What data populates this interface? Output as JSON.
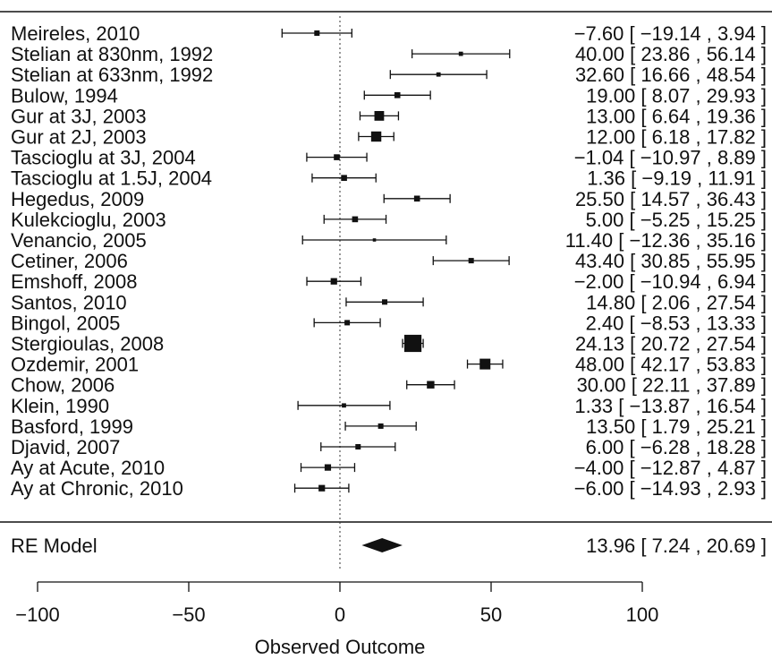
{
  "chart_data": {
    "type": "scatter",
    "subtype": "forest-plot",
    "xlabel": "Observed Outcome",
    "xlim": [
      -100,
      100
    ],
    "xticks": [
      -100,
      -50,
      0,
      50,
      100
    ],
    "xtick_labels": [
      "−100",
      "−50",
      "0",
      "50",
      "100"
    ],
    "reference_line": 0,
    "studies": [
      {
        "label": "Meireles, 2010",
        "est": -7.6,
        "lo": -19.14,
        "hi": 3.94,
        "ci_text": "−7.60 [ −19.14 , 3.94 ]",
        "weight": 1.0
      },
      {
        "label": "Stelian at 830nm, 1992",
        "est": 40.0,
        "lo": 23.86,
        "hi": 56.14,
        "ci_text": "40.00 [ 23.86 , 56.14 ]",
        "weight": 0.8
      },
      {
        "label": "Stelian at 633nm, 1992",
        "est": 32.6,
        "lo": 16.66,
        "hi": 48.54,
        "ci_text": "32.60 [ 16.66 , 48.54 ]",
        "weight": 0.8
      },
      {
        "label": "Bulow, 1994",
        "est": 19.0,
        "lo": 8.07,
        "hi": 29.93,
        "ci_text": "19.00 [ 8.07 , 29.93 ]",
        "weight": 1.1
      },
      {
        "label": "Gur at 3J, 2003",
        "est": 13.0,
        "lo": 6.64,
        "hi": 19.36,
        "ci_text": "13.00 [ 6.64 , 19.36 ]",
        "weight": 1.8
      },
      {
        "label": "Gur at 2J, 2003",
        "est": 12.0,
        "lo": 6.18,
        "hi": 17.82,
        "ci_text": "12.00 [ 6.18 , 17.82 ]",
        "weight": 1.9
      },
      {
        "label": "Tascioglu at 3J, 2004",
        "est": -1.04,
        "lo": -10.97,
        "hi": 8.89,
        "ci_text": "−1.04 [ −10.97 , 8.89 ]",
        "weight": 1.1
      },
      {
        "label": "Tascioglu at 1.5J, 2004",
        "est": 1.36,
        "lo": -9.19,
        "hi": 11.91,
        "ci_text": "1.36 [ −9.19 , 11.91 ]",
        "weight": 1.1
      },
      {
        "label": "Hegedus, 2009",
        "est": 25.5,
        "lo": 14.57,
        "hi": 36.43,
        "ci_text": "25.50 [ 14.57 , 36.43 ]",
        "weight": 1.1
      },
      {
        "label": "Kulekcioglu, 2003",
        "est": 5.0,
        "lo": -5.25,
        "hi": 15.25,
        "ci_text": "5.00 [ −5.25 , 15.25 ]",
        "weight": 1.1
      },
      {
        "label": "Venancio, 2005",
        "est": 11.4,
        "lo": -12.36,
        "hi": 35.16,
        "ci_text": "11.40 [ −12.36 , 35.16 ]",
        "weight": 0.6
      },
      {
        "label": "Cetiner, 2006",
        "est": 43.4,
        "lo": 30.85,
        "hi": 55.95,
        "ci_text": "43.40 [ 30.85 , 55.95 ]",
        "weight": 1.0
      },
      {
        "label": "Emshoff, 2008",
        "est": -2.0,
        "lo": -10.94,
        "hi": 6.94,
        "ci_text": "−2.00 [ −10.94 , 6.94 ]",
        "weight": 1.2
      },
      {
        "label": "Santos, 2010",
        "est": 14.8,
        "lo": 2.06,
        "hi": 27.54,
        "ci_text": "14.80 [ 2.06 , 27.54 ]",
        "weight": 1.0
      },
      {
        "label": "Bingol, 2005",
        "est": 2.4,
        "lo": -8.53,
        "hi": 13.33,
        "ci_text": "2.40 [ −8.53 , 13.33 ]",
        "weight": 1.0
      },
      {
        "label": "Stergioulas, 2008",
        "est": 24.13,
        "lo": 20.72,
        "hi": 27.54,
        "ci_text": "24.13 [ 20.72 , 27.54 ]",
        "weight": 3.2
      },
      {
        "label": "Ozdemir, 2001",
        "est": 48.0,
        "lo": 42.17,
        "hi": 53.83,
        "ci_text": "48.00 [ 42.17 , 53.83 ]",
        "weight": 2.0
      },
      {
        "label": "Chow, 2006",
        "est": 30.0,
        "lo": 22.11,
        "hi": 37.89,
        "ci_text": "30.00 [ 22.11 , 37.89 ]",
        "weight": 1.4
      },
      {
        "label": "Klein, 1990",
        "est": 1.33,
        "lo": -13.87,
        "hi": 16.54,
        "ci_text": "1.33 [ −13.87 , 16.54 ]",
        "weight": 0.8
      },
      {
        "label": "Basford, 1999",
        "est": 13.5,
        "lo": 1.79,
        "hi": 25.21,
        "ci_text": "13.50 [ 1.79 , 25.21 ]",
        "weight": 1.0
      },
      {
        "label": "Djavid, 2007",
        "est": 6.0,
        "lo": -6.28,
        "hi": 18.28,
        "ci_text": "6.00 [ −6.28 , 18.28 ]",
        "weight": 1.0
      },
      {
        "label": "Ay at Acute, 2010",
        "est": -4.0,
        "lo": -12.87,
        "hi": 4.87,
        "ci_text": "−4.00 [ −12.87 , 4.87 ]",
        "weight": 1.2
      },
      {
        "label": "Ay at Chronic, 2010",
        "est": -6.0,
        "lo": -14.93,
        "hi": 2.93,
        "ci_text": "−6.00 [ −14.93 , 2.93 ]",
        "weight": 1.2
      }
    ],
    "summary": {
      "label": "RE Model",
      "est": 13.96,
      "lo": 7.24,
      "hi": 20.69,
      "ci_text": "13.96 [ 7.24 , 20.69 ]"
    },
    "colors": {
      "ink": "#111111",
      "background": "#ffffff"
    }
  }
}
